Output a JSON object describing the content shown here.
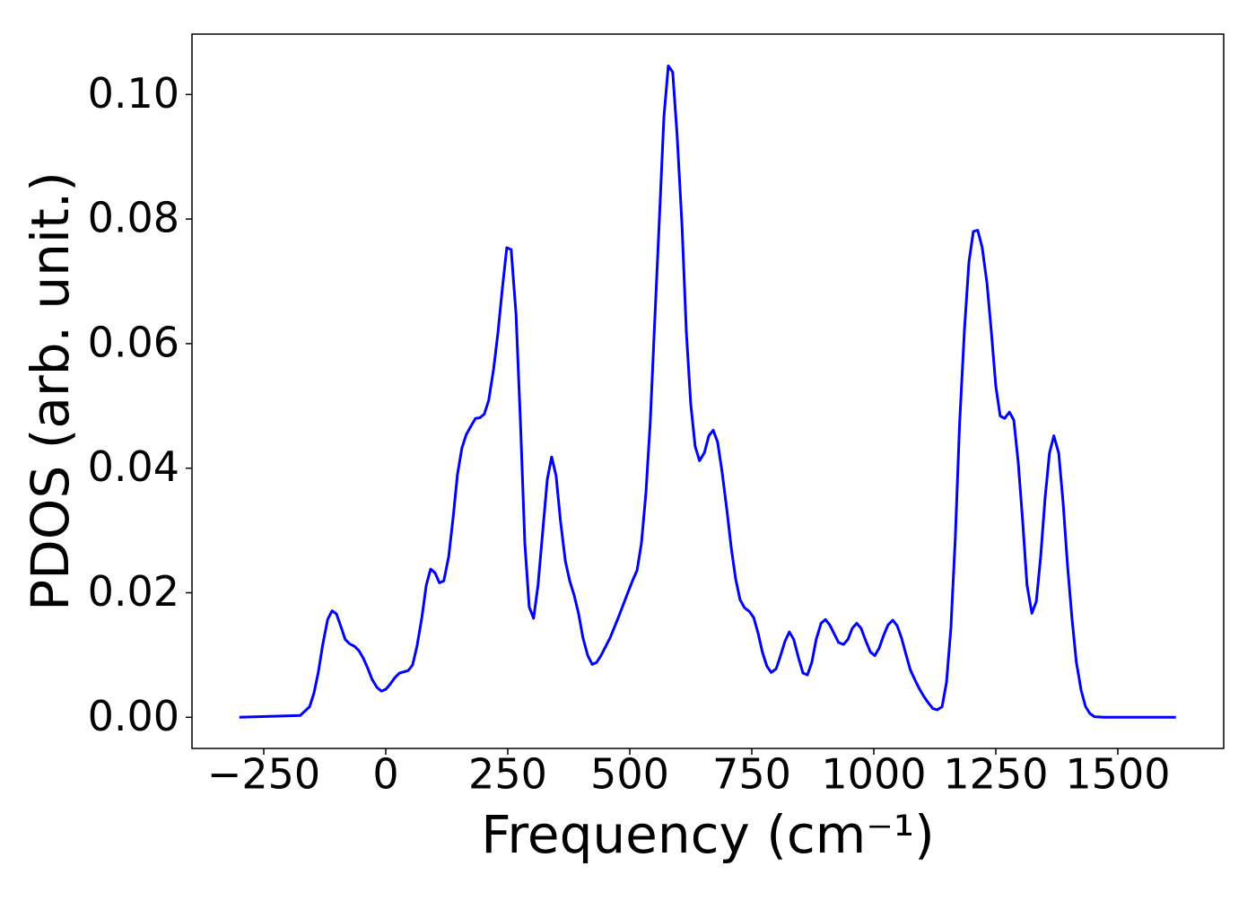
{
  "chart_data": {
    "type": "line",
    "x_label": "Frequency (cm⁻¹)",
    "y_label": "PDOS (arb. unit.)",
    "x": [
      -300,
      -175,
      -156,
      -147,
      -138,
      -129,
      -119,
      -110,
      -101,
      -92,
      -83,
      -74,
      -64,
      -55,
      -46,
      -37,
      -28,
      -18,
      -9,
      0,
      9,
      18,
      28,
      37,
      46,
      55,
      64,
      74,
      83,
      92,
      101,
      110,
      119,
      129,
      138,
      147,
      156,
      165,
      175,
      184,
      193,
      202,
      211,
      221,
      230,
      239,
      248,
      257,
      267,
      276,
      285,
      294,
      303,
      312,
      322,
      331,
      340,
      349,
      358,
      368,
      377,
      386,
      395,
      404,
      414,
      423,
      432,
      441,
      460,
      478,
      496,
      506,
      515,
      524,
      533,
      542,
      551,
      561,
      570,
      579,
      588,
      597,
      607,
      616,
      625,
      634,
      643,
      653,
      662,
      671,
      680,
      689,
      699,
      708,
      717,
      726,
      735,
      745,
      754,
      763,
      772,
      781,
      790,
      800,
      809,
      818,
      827,
      836,
      846,
      855,
      864,
      873,
      882,
      892,
      901,
      910,
      919,
      928,
      938,
      947,
      956,
      965,
      974,
      983,
      993,
      1002,
      1011,
      1020,
      1029,
      1039,
      1048,
      1057,
      1066,
      1075,
      1085,
      1094,
      1103,
      1112,
      1121,
      1130,
      1140,
      1149,
      1158,
      1167,
      1176,
      1186,
      1195,
      1204,
      1213,
      1222,
      1232,
      1241,
      1250,
      1259,
      1268,
      1278,
      1287,
      1296,
      1305,
      1314,
      1324,
      1333,
      1342,
      1351,
      1360,
      1369,
      1379,
      1388,
      1397,
      1406,
      1415,
      1425,
      1434,
      1443,
      1452,
      1471,
      1619
    ],
    "series": [
      {
        "name": "PDOS",
        "color": "#0000ff",
        "values": [
          0,
          0.0003,
          0.0017,
          0.0039,
          0.0073,
          0.0117,
          0.0157,
          0.0171,
          0.0166,
          0.0146,
          0.0125,
          0.0118,
          0.0114,
          0.0107,
          0.0095,
          0.0079,
          0.0061,
          0.0048,
          0.0042,
          0.0045,
          0.0053,
          0.0063,
          0.0071,
          0.0073,
          0.0075,
          0.0084,
          0.0114,
          0.016,
          0.0212,
          0.0238,
          0.0232,
          0.0216,
          0.0219,
          0.0258,
          0.032,
          0.039,
          0.0432,
          0.0454,
          0.0468,
          0.048,
          0.0481,
          0.0487,
          0.0509,
          0.0559,
          0.0618,
          0.0689,
          0.0754,
          0.0751,
          0.0647,
          0.0474,
          0.028,
          0.0177,
          0.0159,
          0.0212,
          0.0301,
          0.0382,
          0.0418,
          0.0388,
          0.0316,
          0.0251,
          0.0219,
          0.0196,
          0.0167,
          0.0128,
          0.0099,
          0.0085,
          0.0088,
          0.0099,
          0.0128,
          0.0163,
          0.02,
          0.022,
          0.0236,
          0.028,
          0.0359,
          0.0474,
          0.0633,
          0.0805,
          0.0964,
          0.1046,
          0.1036,
          0.0935,
          0.0791,
          0.0618,
          0.0503,
          0.0435,
          0.0412,
          0.0425,
          0.0452,
          0.0461,
          0.0442,
          0.0395,
          0.0333,
          0.0272,
          0.0222,
          0.0189,
          0.0176,
          0.017,
          0.016,
          0.0135,
          0.0104,
          0.0082,
          0.0072,
          0.0078,
          0.0099,
          0.0122,
          0.0137,
          0.0125,
          0.0095,
          0.0071,
          0.0068,
          0.0088,
          0.0125,
          0.0151,
          0.0157,
          0.0148,
          0.0134,
          0.012,
          0.0117,
          0.0125,
          0.0143,
          0.0151,
          0.0143,
          0.0124,
          0.0105,
          0.0099,
          0.0111,
          0.0131,
          0.0148,
          0.0156,
          0.0147,
          0.0127,
          0.0101,
          0.0076,
          0.0059,
          0.0045,
          0.0033,
          0.0023,
          0.0014,
          0.0012,
          0.0017,
          0.0056,
          0.0143,
          0.0287,
          0.0474,
          0.0625,
          0.0731,
          0.078,
          0.0782,
          0.0755,
          0.0697,
          0.0618,
          0.0532,
          0.0484,
          0.048,
          0.049,
          0.0477,
          0.0409,
          0.0316,
          0.0212,
          0.0167,
          0.0186,
          0.0258,
          0.0352,
          0.0424,
          0.0452,
          0.0424,
          0.0344,
          0.0244,
          0.016,
          0.0089,
          0.0043,
          0.0017,
          0.0006,
          0.0001,
          0,
          0
        ]
      }
    ],
    "xlim": [
      -397,
      1717
    ],
    "ylim": [
      -0.005,
      0.1097
    ],
    "xticks": [
      {
        "value": -250,
        "label": "−250"
      },
      0,
      250,
      500,
      750,
      1000,
      1250,
      1500
    ],
    "yticks": [
      {
        "value": 0,
        "label": "0.00"
      },
      0.02,
      0.04,
      0.06,
      0.08,
      {
        "value": 0.1,
        "label": "0.10"
      }
    ],
    "grid": false
  }
}
